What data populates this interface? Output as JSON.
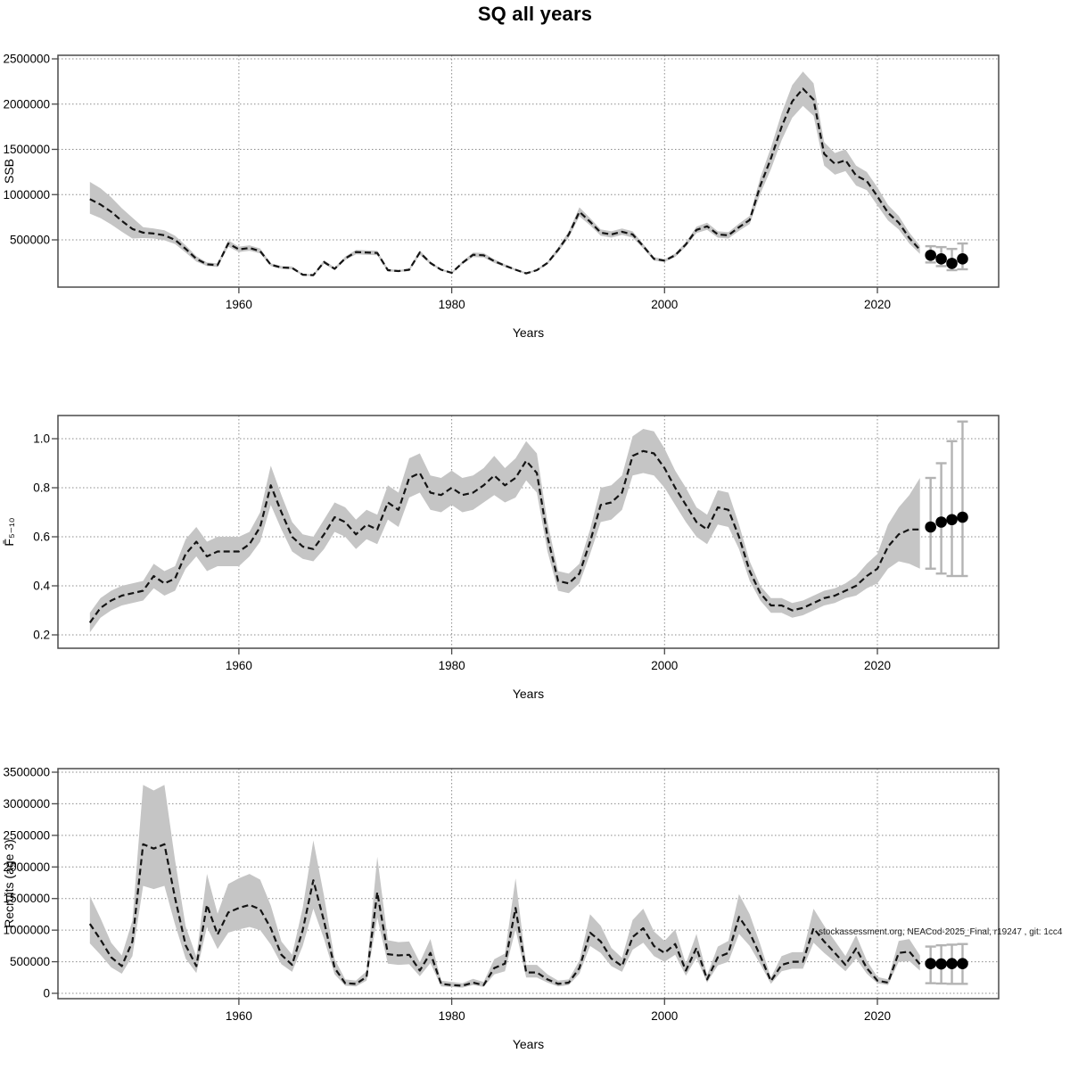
{
  "title": "SQ all years",
  "attribution": "stockassessment.org, NEACod-2025_Final, r19247 , git: 1cc4",
  "colors": {
    "band": "#c5c5c5",
    "median_line": "#141414",
    "grid": "#8c8c8c",
    "box": "#4a4a4a",
    "forecast_point": "#000000",
    "error_bar": "#b3b3b3"
  },
  "chart_data": [
    {
      "type": "line",
      "name": "ssb",
      "title": "",
      "xlabel": "Years",
      "ylabel": "SSB",
      "legend": "none",
      "grid": "dotted",
      "line_style": "dashed-with-confidence-band",
      "xlim": [
        1943,
        2031.4
      ],
      "ylim": [
        0,
        2540000
      ],
      "x_ticks": [
        1960,
        1980,
        2000,
        2020
      ],
      "y_ticks": {
        "values": [
          500000,
          1000000,
          1500000,
          2000000,
          2500000
        ],
        "labels": [
          "500000",
          "1000000",
          "1500000",
          "2000000",
          "2500000"
        ]
      },
      "years": [
        1946,
        1947,
        1948,
        1949,
        1950,
        1951,
        1952,
        1953,
        1954,
        1955,
        1956,
        1957,
        1958,
        1959,
        1960,
        1961,
        1962,
        1963,
        1964,
        1965,
        1966,
        1967,
        1968,
        1969,
        1970,
        1971,
        1972,
        1973,
        1974,
        1975,
        1976,
        1977,
        1978,
        1979,
        1980,
        1981,
        1982,
        1983,
        1984,
        1985,
        1986,
        1987,
        1988,
        1989,
        1990,
        1991,
        1992,
        1993,
        1994,
        1995,
        1996,
        1997,
        1998,
        1999,
        2000,
        2001,
        2002,
        2003,
        2004,
        2005,
        2006,
        2007,
        2008,
        2009,
        2010,
        2011,
        2012,
        2013,
        2014,
        2015,
        2016,
        2017,
        2018,
        2019,
        2020,
        2021,
        2022,
        2023,
        2024
      ],
      "values": [
        950000,
        890000,
        810000,
        710000,
        620000,
        580000,
        570000,
        550000,
        500000,
        400000,
        290000,
        230000,
        220000,
        460000,
        395000,
        410000,
        375000,
        225000,
        195000,
        190000,
        115000,
        110000,
        255000,
        180000,
        295000,
        365000,
        360000,
        355000,
        165000,
        155000,
        170000,
        360000,
        245000,
        170000,
        135000,
        245000,
        335000,
        330000,
        265000,
        215000,
        170000,
        130000,
        165000,
        245000,
        390000,
        560000,
        810000,
        700000,
        580000,
        560000,
        590000,
        560000,
        430000,
        290000,
        270000,
        330000,
        450000,
        610000,
        650000,
        560000,
        550000,
        640000,
        720000,
        1100000,
        1400000,
        1750000,
        2030000,
        2170000,
        2050000,
        1450000,
        1340000,
        1380000,
        1210000,
        1150000,
        980000,
        800000,
        690000,
        520000,
        390000
      ],
      "lower": [
        790000,
        740000,
        670000,
        590000,
        515000,
        520000,
        515000,
        495000,
        455000,
        360000,
        260000,
        210000,
        200000,
        425000,
        365000,
        380000,
        350000,
        210000,
        180000,
        175000,
        105000,
        100000,
        235000,
        165000,
        275000,
        340000,
        335000,
        330000,
        150000,
        145000,
        155000,
        335000,
        230000,
        160000,
        125000,
        230000,
        310000,
        305000,
        245000,
        200000,
        160000,
        120000,
        155000,
        230000,
        365000,
        525000,
        760000,
        660000,
        545000,
        525000,
        555000,
        525000,
        405000,
        270000,
        255000,
        310000,
        425000,
        575000,
        610000,
        525000,
        515000,
        600000,
        675000,
        1010000,
        1280000,
        1600000,
        1850000,
        1980000,
        1870000,
        1320000,
        1220000,
        1260000,
        1100000,
        1050000,
        880000,
        715000,
        615000,
        460000,
        345000
      ],
      "upper": [
        1140000,
        1070000,
        970000,
        850000,
        745000,
        640000,
        625000,
        605000,
        545000,
        440000,
        320000,
        250000,
        240000,
        495000,
        425000,
        440000,
        405000,
        240000,
        210000,
        205000,
        125000,
        120000,
        275000,
        195000,
        315000,
        390000,
        385000,
        380000,
        180000,
        165000,
        185000,
        385000,
        260000,
        180000,
        145000,
        260000,
        360000,
        355000,
        285000,
        230000,
        180000,
        140000,
        175000,
        260000,
        415000,
        595000,
        860000,
        740000,
        615000,
        595000,
        625000,
        595000,
        455000,
        310000,
        285000,
        350000,
        475000,
        645000,
        690000,
        595000,
        585000,
        680000,
        765000,
        1190000,
        1520000,
        1900000,
        2210000,
        2360000,
        2230000,
        1580000,
        1460000,
        1500000,
        1320000,
        1250000,
        1080000,
        885000,
        765000,
        580000,
        435000
      ],
      "forecast": {
        "years": [
          2025,
          2026,
          2027,
          2028
        ],
        "values": [
          330000,
          290000,
          240000,
          290000
        ],
        "lower": [
          250000,
          210000,
          165000,
          175000
        ],
        "upper": [
          430000,
          420000,
          400000,
          460000
        ]
      }
    },
    {
      "type": "line",
      "name": "fbar",
      "title": "",
      "xlabel": "Years",
      "ylabel": "F̄₅₋₁₀",
      "legend": "none",
      "grid": "dotted",
      "line_style": "dashed-with-confidence-band",
      "xlim": [
        1943,
        2031.4
      ],
      "ylim": [
        0.14,
        1.09
      ],
      "x_ticks": [
        1960,
        1980,
        2000,
        2020
      ],
      "y_ticks": {
        "values": [
          0.2,
          0.4,
          0.6,
          0.8,
          1.0
        ],
        "labels": [
          "0.2",
          "0.4",
          "0.6",
          "0.8",
          "1.0"
        ]
      },
      "years": [
        1946,
        1947,
        1948,
        1949,
        1950,
        1951,
        1952,
        1953,
        1954,
        1955,
        1956,
        1957,
        1958,
        1959,
        1960,
        1961,
        1962,
        1963,
        1964,
        1965,
        1966,
        1967,
        1968,
        1969,
        1970,
        1971,
        1972,
        1973,
        1974,
        1975,
        1976,
        1977,
        1978,
        1979,
        1980,
        1981,
        1982,
        1983,
        1984,
        1985,
        1986,
        1987,
        1988,
        1989,
        1990,
        1991,
        1992,
        1993,
        1994,
        1995,
        1996,
        1997,
        1998,
        1999,
        2000,
        2001,
        2002,
        2003,
        2004,
        2005,
        2006,
        2007,
        2008,
        2009,
        2010,
        2011,
        2012,
        2013,
        2014,
        2015,
        2016,
        2017,
        2018,
        2019,
        2020,
        2021,
        2022,
        2023,
        2024
      ],
      "values": [
        0.25,
        0.31,
        0.34,
        0.36,
        0.37,
        0.38,
        0.44,
        0.41,
        0.43,
        0.53,
        0.58,
        0.52,
        0.54,
        0.54,
        0.54,
        0.57,
        0.64,
        0.81,
        0.7,
        0.6,
        0.56,
        0.55,
        0.61,
        0.68,
        0.66,
        0.61,
        0.65,
        0.63,
        0.74,
        0.71,
        0.84,
        0.86,
        0.78,
        0.77,
        0.8,
        0.77,
        0.78,
        0.81,
        0.85,
        0.81,
        0.84,
        0.91,
        0.86,
        0.6,
        0.42,
        0.41,
        0.45,
        0.58,
        0.73,
        0.74,
        0.78,
        0.93,
        0.95,
        0.94,
        0.88,
        0.8,
        0.73,
        0.66,
        0.63,
        0.72,
        0.71,
        0.6,
        0.46,
        0.37,
        0.32,
        0.32,
        0.3,
        0.31,
        0.33,
        0.35,
        0.36,
        0.38,
        0.4,
        0.44,
        0.47,
        0.56,
        0.61,
        0.63,
        0.63
      ],
      "lower": [
        0.21,
        0.27,
        0.3,
        0.32,
        0.33,
        0.34,
        0.39,
        0.36,
        0.38,
        0.47,
        0.52,
        0.46,
        0.48,
        0.48,
        0.48,
        0.52,
        0.58,
        0.73,
        0.63,
        0.54,
        0.51,
        0.5,
        0.55,
        0.62,
        0.6,
        0.55,
        0.59,
        0.57,
        0.67,
        0.64,
        0.76,
        0.78,
        0.71,
        0.7,
        0.73,
        0.7,
        0.71,
        0.74,
        0.77,
        0.74,
        0.76,
        0.83,
        0.78,
        0.54,
        0.38,
        0.37,
        0.41,
        0.53,
        0.66,
        0.67,
        0.71,
        0.85,
        0.86,
        0.85,
        0.8,
        0.73,
        0.66,
        0.6,
        0.57,
        0.65,
        0.64,
        0.55,
        0.42,
        0.34,
        0.29,
        0.29,
        0.27,
        0.28,
        0.3,
        0.32,
        0.33,
        0.35,
        0.36,
        0.39,
        0.41,
        0.47,
        0.5,
        0.49,
        0.47
      ],
      "upper": [
        0.29,
        0.35,
        0.38,
        0.4,
        0.41,
        0.42,
        0.49,
        0.46,
        0.48,
        0.59,
        0.64,
        0.58,
        0.6,
        0.6,
        0.6,
        0.62,
        0.7,
        0.89,
        0.77,
        0.66,
        0.61,
        0.6,
        0.67,
        0.74,
        0.72,
        0.67,
        0.71,
        0.69,
        0.81,
        0.78,
        0.92,
        0.94,
        0.85,
        0.84,
        0.87,
        0.84,
        0.85,
        0.88,
        0.93,
        0.88,
        0.92,
        0.99,
        0.94,
        0.66,
        0.46,
        0.45,
        0.49,
        0.63,
        0.8,
        0.81,
        0.85,
        1.01,
        1.04,
        1.03,
        0.96,
        0.87,
        0.8,
        0.72,
        0.69,
        0.79,
        0.78,
        0.65,
        0.5,
        0.4,
        0.35,
        0.35,
        0.33,
        0.34,
        0.36,
        0.38,
        0.39,
        0.41,
        0.44,
        0.49,
        0.53,
        0.65,
        0.72,
        0.77,
        0.84
      ],
      "forecast": {
        "years": [
          2025,
          2026,
          2027,
          2028
        ],
        "values": [
          0.64,
          0.66,
          0.67,
          0.68
        ],
        "lower": [
          0.47,
          0.45,
          0.44,
          0.44
        ],
        "upper": [
          0.84,
          0.9,
          0.99,
          1.07
        ]
      }
    },
    {
      "type": "line",
      "name": "recruits",
      "title": "",
      "xlabel": "Years",
      "ylabel": "Recruits (age 3)",
      "legend": "none",
      "grid": "dotted",
      "line_style": "dashed-with-confidence-band",
      "xlim": [
        1943,
        2031.4
      ],
      "ylim": [
        0,
        3560000
      ],
      "x_ticks": [
        1960,
        1980,
        2000,
        2020
      ],
      "y_ticks": {
        "values": [
          0,
          500000,
          1000000,
          1500000,
          2000000,
          2500000,
          3000000,
          3500000
        ],
        "labels": [
          "0",
          "500000",
          "1000000",
          "1500000",
          "2000000",
          "2500000",
          "3000000",
          "3500000"
        ]
      },
      "years": [
        1946,
        1947,
        1948,
        1949,
        1950,
        1951,
        1952,
        1953,
        1954,
        1955,
        1956,
        1957,
        1958,
        1959,
        1960,
        1961,
        1962,
        1963,
        1964,
        1965,
        1966,
        1967,
        1968,
        1969,
        1970,
        1971,
        1972,
        1973,
        1974,
        1975,
        1976,
        1977,
        1978,
        1979,
        1980,
        1981,
        1982,
        1983,
        1984,
        1985,
        1986,
        1987,
        1988,
        1989,
        1990,
        1991,
        1992,
        1993,
        1994,
        1995,
        1996,
        1997,
        1998,
        1999,
        2000,
        2001,
        2002,
        2003,
        2004,
        2005,
        2006,
        2007,
        2008,
        2009,
        2010,
        2011,
        2012,
        2013,
        2014,
        2015,
        2016,
        2017,
        2018,
        2019,
        2020,
        2021,
        2022,
        2023,
        2024
      ],
      "values": [
        1100000,
        850000,
        570000,
        430000,
        820000,
        2360000,
        2290000,
        2360000,
        1510000,
        760000,
        430000,
        1400000,
        930000,
        1280000,
        1350000,
        1400000,
        1330000,
        1030000,
        610000,
        450000,
        1000000,
        1790000,
        1140000,
        400000,
        160000,
        150000,
        260000,
        1600000,
        620000,
        600000,
        610000,
        360000,
        640000,
        150000,
        130000,
        120000,
        170000,
        130000,
        400000,
        470000,
        1350000,
        330000,
        330000,
        220000,
        150000,
        170000,
        400000,
        960000,
        820000,
        550000,
        430000,
        890000,
        1030000,
        750000,
        640000,
        780000,
        360000,
        720000,
        220000,
        570000,
        640000,
        1210000,
        960000,
        590000,
        195000,
        450000,
        500000,
        500000,
        1030000,
        820000,
        640000,
        450000,
        710000,
        400000,
        200000,
        170000,
        640000,
        660000,
        460000
      ],
      "lower": [
        790000,
        610000,
        410000,
        310000,
        590000,
        1700000,
        1650000,
        1700000,
        1090000,
        550000,
        320000,
        1050000,
        700000,
        960000,
        1010000,
        1050000,
        1000000,
        770000,
        460000,
        340000,
        750000,
        1340000,
        860000,
        300000,
        120000,
        110000,
        200000,
        1200000,
        470000,
        450000,
        460000,
        270000,
        480000,
        110000,
        100000,
        90000,
        130000,
        100000,
        300000,
        350000,
        1010000,
        250000,
        250000,
        170000,
        110000,
        130000,
        310000,
        750000,
        640000,
        430000,
        340000,
        690000,
        800000,
        590000,
        500000,
        610000,
        280000,
        560000,
        170000,
        440000,
        500000,
        940000,
        750000,
        460000,
        150000,
        350000,
        390000,
        390000,
        800000,
        640000,
        500000,
        350000,
        550000,
        310000,
        160000,
        130000,
        500000,
        510000,
        360000
      ],
      "upper": [
        1540000,
        1190000,
        800000,
        600000,
        1150000,
        3300000,
        3210000,
        3300000,
        2110000,
        1060000,
        580000,
        1890000,
        1260000,
        1730000,
        1820000,
        1890000,
        1800000,
        1390000,
        820000,
        610000,
        1350000,
        2420000,
        1540000,
        540000,
        220000,
        200000,
        350000,
        2160000,
        840000,
        810000,
        820000,
        490000,
        860000,
        200000,
        180000,
        160000,
        230000,
        180000,
        540000,
        630000,
        1820000,
        450000,
        450000,
        300000,
        200000,
        220000,
        520000,
        1250000,
        1070000,
        720000,
        560000,
        1160000,
        1340000,
        980000,
        830000,
        1010000,
        470000,
        940000,
        290000,
        740000,
        830000,
        1570000,
        1250000,
        770000,
        250000,
        590000,
        650000,
        650000,
        1340000,
        1070000,
        830000,
        590000,
        920000,
        520000,
        260000,
        220000,
        830000,
        860000,
        600000
      ],
      "forecast": {
        "years": [
          2025,
          2026,
          2027,
          2028
        ],
        "values": [
          470000,
          465000,
          470000,
          470000
        ],
        "lower": [
          160000,
          155000,
          150000,
          150000
        ],
        "upper": [
          740000,
          760000,
          770000,
          780000
        ]
      }
    }
  ]
}
